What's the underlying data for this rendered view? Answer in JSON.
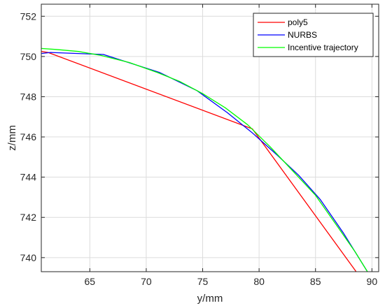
{
  "chart_data": {
    "type": "line",
    "xlabel": "y/mm",
    "ylabel": "z/mm",
    "xlim": [
      60.7,
      90.6
    ],
    "ylim": [
      739.3,
      752.6
    ],
    "xticks": [
      "65",
      "70",
      "75",
      "80",
      "85",
      "90"
    ],
    "xtick_values": [
      65,
      70,
      75,
      80,
      85,
      90
    ],
    "yticks": [
      "740",
      "742",
      "744",
      "746",
      "748",
      "750",
      "752"
    ],
    "ytick_values": [
      740,
      742,
      744,
      746,
      748,
      750,
      752
    ],
    "grid": true,
    "legend_position": "top-right",
    "series": [
      {
        "name": "poly5",
        "color": "#ff0000",
        "x": [
          60.7,
          61.3,
          79.4,
          88.6
        ],
        "y": [
          750.25,
          750.2,
          746.4,
          739.3
        ]
      },
      {
        "name": "NURBS",
        "color": "#0000ff",
        "x": [
          60.7,
          61.5,
          66.2,
          71.2,
          74.5,
          77.2,
          79.4,
          81.6,
          83.5,
          85.4,
          87.5,
          89.6
        ],
        "y": [
          750.15,
          750.2,
          750.1,
          749.2,
          748.3,
          747.2,
          746.2,
          745.1,
          744.1,
          742.9,
          741.2,
          739.3
        ]
      },
      {
        "name": "Incentive trajectory",
        "color": "#00ff00",
        "x": [
          60.7,
          62.0,
          64.0,
          66.0,
          68.5,
          71.0,
          73.0,
          75.0,
          77.0,
          79.0,
          81.0,
          83.0,
          85.0,
          87.0,
          88.5,
          89.6
        ],
        "y": [
          750.4,
          750.35,
          750.25,
          750.05,
          749.7,
          749.2,
          748.75,
          748.15,
          747.45,
          746.6,
          745.5,
          744.3,
          743.1,
          741.5,
          740.3,
          739.3
        ]
      }
    ]
  }
}
